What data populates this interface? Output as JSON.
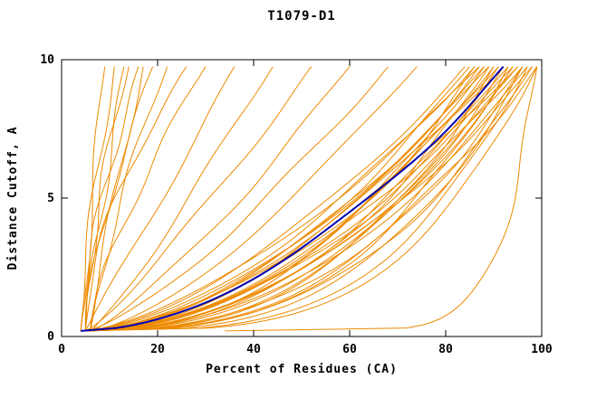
{
  "chart_data": {
    "type": "line",
    "title": "T1079-D1",
    "xlabel": "Percent of Residues (CA)",
    "ylabel": "Distance Cutoff, A",
    "xlim": [
      0,
      100
    ],
    "ylim": [
      0,
      10
    ],
    "x_ticks": [
      0,
      20,
      40,
      60,
      80,
      100
    ],
    "y_ticks": [
      0,
      5,
      10
    ],
    "grid": false,
    "legend": "none",
    "colors": {
      "model": "#ED8A00",
      "reference": "#0000B0",
      "axis": "#000000",
      "background": "#FFFFFF"
    },
    "style": {
      "wobble": 1.1,
      "model_width": 1,
      "reference_width": 2
    },
    "curve_note": "Each series gives percent-of-residues x as function of distance cutoff y (0.2..9.75 A): x = start + (end-start)*t^shape, t = normalized cutoff",
    "reference": {
      "name": "reference-model",
      "start": 4,
      "end": 92,
      "shape": 0.55
    },
    "models": [
      {
        "name": "model-01",
        "start": 4,
        "end": 9,
        "shape": 1.1
      },
      {
        "name": "model-02",
        "start": 4,
        "end": 11,
        "shape": 1.3
      },
      {
        "name": "model-03",
        "start": 5,
        "end": 13,
        "shape": 1.2
      },
      {
        "name": "model-04",
        "start": 5,
        "end": 14,
        "shape": 1.6
      },
      {
        "name": "model-05",
        "start": 4,
        "end": 16,
        "shape": 1.4
      },
      {
        "name": "model-06",
        "start": 6,
        "end": 17,
        "shape": 1.1
      },
      {
        "name": "model-07",
        "start": 5,
        "end": 19,
        "shape": 1.5
      },
      {
        "name": "model-08",
        "start": 6,
        "end": 22,
        "shape": 1.3
      },
      {
        "name": "model-09",
        "start": 5,
        "end": 26,
        "shape": 1.7
      },
      {
        "name": "model-10",
        "start": 6,
        "end": 30,
        "shape": 1.4
      },
      {
        "name": "model-11",
        "start": 5,
        "end": 36,
        "shape": 1.0
      },
      {
        "name": "model-12",
        "start": 6,
        "end": 44,
        "shape": 0.9
      },
      {
        "name": "model-13",
        "start": 5,
        "end": 52,
        "shape": 0.85
      },
      {
        "name": "model-14",
        "start": 6,
        "end": 60,
        "shape": 0.8
      },
      {
        "name": "model-15",
        "start": 5,
        "end": 68,
        "shape": 0.75
      },
      {
        "name": "model-16",
        "start": 6,
        "end": 74,
        "shape": 0.7
      },
      {
        "name": "model-17",
        "start": 4,
        "end": 84,
        "shape": 0.62
      },
      {
        "name": "model-18",
        "start": 5,
        "end": 85,
        "shape": 0.55
      },
      {
        "name": "model-19",
        "start": 4,
        "end": 86,
        "shape": 0.6
      },
      {
        "name": "model-20",
        "start": 6,
        "end": 86,
        "shape": 0.45
      },
      {
        "name": "model-21",
        "start": 5,
        "end": 87,
        "shape": 0.52
      },
      {
        "name": "model-22",
        "start": 4,
        "end": 87,
        "shape": 0.65
      },
      {
        "name": "model-23",
        "start": 5,
        "end": 88,
        "shape": 0.48
      },
      {
        "name": "model-24",
        "start": 6,
        "end": 88,
        "shape": 0.58
      },
      {
        "name": "model-25",
        "start": 4,
        "end": 89,
        "shape": 0.42
      },
      {
        "name": "model-26",
        "start": 5,
        "end": 89,
        "shape": 0.6
      },
      {
        "name": "model-27",
        "start": 4,
        "end": 90,
        "shape": 0.5
      },
      {
        "name": "model-28",
        "start": 6,
        "end": 90,
        "shape": 0.38
      },
      {
        "name": "model-29",
        "start": 5,
        "end": 91,
        "shape": 0.55
      },
      {
        "name": "model-30",
        "start": 4,
        "end": 91,
        "shape": 0.45
      },
      {
        "name": "model-31",
        "start": 5,
        "end": 92,
        "shape": 0.6
      },
      {
        "name": "model-32",
        "start": 6,
        "end": 92,
        "shape": 0.4
      },
      {
        "name": "model-33",
        "start": 4,
        "end": 93,
        "shape": 0.5
      },
      {
        "name": "model-34",
        "start": 5,
        "end": 93,
        "shape": 0.35
      },
      {
        "name": "model-35",
        "start": 6,
        "end": 94,
        "shape": 0.55
      },
      {
        "name": "model-36",
        "start": 4,
        "end": 94,
        "shape": 0.42
      },
      {
        "name": "model-37",
        "start": 5,
        "end": 95,
        "shape": 0.48
      },
      {
        "name": "model-38",
        "start": 4,
        "end": 95,
        "shape": 0.6
      },
      {
        "name": "model-39",
        "start": 6,
        "end": 96,
        "shape": 0.38
      },
      {
        "name": "model-40",
        "start": 5,
        "end": 96,
        "shape": 0.52
      },
      {
        "name": "model-41",
        "start": 4,
        "end": 97,
        "shape": 0.45
      },
      {
        "name": "model-42",
        "start": 5,
        "end": 97,
        "shape": 0.3
      },
      {
        "name": "model-43",
        "start": 6,
        "end": 98,
        "shape": 0.5
      },
      {
        "name": "model-44",
        "start": 4,
        "end": 98,
        "shape": 0.36
      },
      {
        "name": "model-45",
        "start": 5,
        "end": 99,
        "shape": 0.42
      },
      {
        "name": "model-46",
        "start": 4,
        "end": 99,
        "shape": 0.28
      },
      {
        "name": "model-47",
        "start": 5,
        "end": 96,
        "shape": 0.33
      },
      {
        "name": "model-48",
        "start": 34,
        "end": 99,
        "shape": 0.12
      }
    ]
  }
}
